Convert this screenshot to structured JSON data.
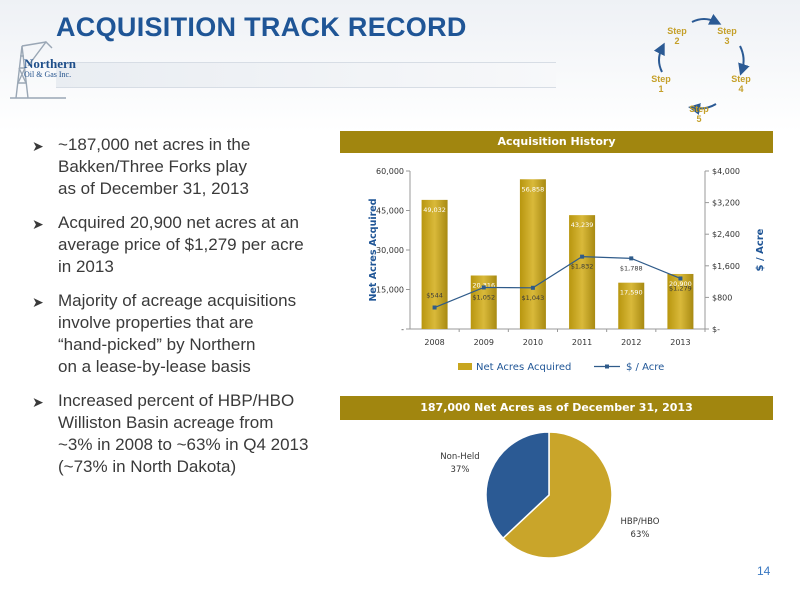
{
  "page": {
    "title": "ACQUISITION TRACK RECORD",
    "page_number": "14"
  },
  "logo": {
    "line1": "Northern",
    "line2": "Oil & Gas Inc."
  },
  "steps": [
    "Step\n1",
    "Step\n2",
    "Step\n3",
    "Step\n4",
    "Step\n5"
  ],
  "bullets": [
    [
      "~187,000 net acres in the",
      "Bakken/Three Forks play",
      "as of December 31, 2013"
    ],
    [
      "Acquired 20,900 net acres at an",
      "average price of $1,279 per acre",
      "in 2013"
    ],
    [
      "Majority of acreage acquisitions",
      "involve properties that are",
      "“hand-picked” by Northern",
      "on a lease-by-lease basis"
    ],
    [
      "Increased percent of HBP/HBO",
      "Williston Basin acreage from",
      "~3% in 2008 to ~63% in Q4 2013",
      "(~73% in North Dakota)"
    ]
  ],
  "colors": {
    "gold": "#a1860f",
    "bar": "#c8a61f",
    "line": "#2f5b8a",
    "pie_gold": "#c9a52a",
    "pie_blue": "#2b5a94"
  },
  "chart_data": [
    {
      "type": "bar",
      "title": "Acquisition History",
      "categories": [
        "2008",
        "2009",
        "2010",
        "2011",
        "2012",
        "2013"
      ],
      "series": [
        {
          "name": "Net Acres Acquired",
          "axis": "left",
          "type": "bar",
          "values": [
            49032,
            20316,
            56858,
            43239,
            17590,
            20900
          ],
          "labels": [
            "49,032",
            "20,316",
            "56,858",
            "43,239",
            "17,590",
            "20,900"
          ]
        },
        {
          "name": "$ / Acre",
          "axis": "right",
          "type": "line",
          "values": [
            544,
            1052,
            1043,
            1832,
            1788,
            1279
          ],
          "labels": [
            "$544",
            "$1,052",
            "$1,043",
            "$1,832",
            "$1,788",
            "$1,279"
          ]
        }
      ],
      "ylabel": "Net Acres Acquired",
      "y2label": "$ / Acre",
      "ylim": [
        0,
        60000
      ],
      "y2lim": [
        0,
        4000
      ],
      "yticks": [
        "-",
        "15,000",
        "30,000",
        "45,000",
        "60,000"
      ],
      "y2ticks": [
        "$-",
        "$800",
        "$1,600",
        "$2,400",
        "$3,200",
        "$4,000"
      ],
      "grid": false,
      "legend": "bottom"
    },
    {
      "type": "pie",
      "title": "187,000 Net Acres as of December 31, 2013",
      "slices": [
        {
          "name": "HBP/HBO",
          "value": 63,
          "label": "63%"
        },
        {
          "name": "Non-Held",
          "value": 37,
          "label": "37%"
        }
      ]
    }
  ]
}
